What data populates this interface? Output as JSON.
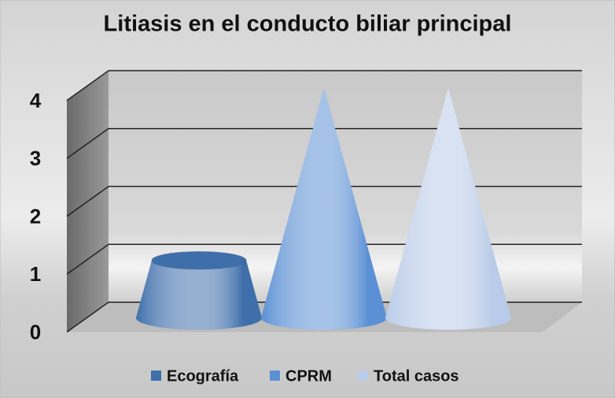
{
  "chart_data": {
    "type": "cone",
    "title": "Litiasis en el conducto biliar principal",
    "categories": [
      null
    ],
    "series": [
      {
        "name": "Ecografía",
        "color": "#3f6fab",
        "values": [
          1
        ]
      },
      {
        "name": "CPRM",
        "color": "#5b90d4",
        "values": [
          4
        ]
      },
      {
        "name": "Total casos",
        "color": "#b9cbe8",
        "values": [
          4
        ]
      }
    ],
    "ylim": [
      0,
      4
    ],
    "yticks": [
      0,
      1,
      2,
      3,
      4
    ],
    "grid": true
  }
}
